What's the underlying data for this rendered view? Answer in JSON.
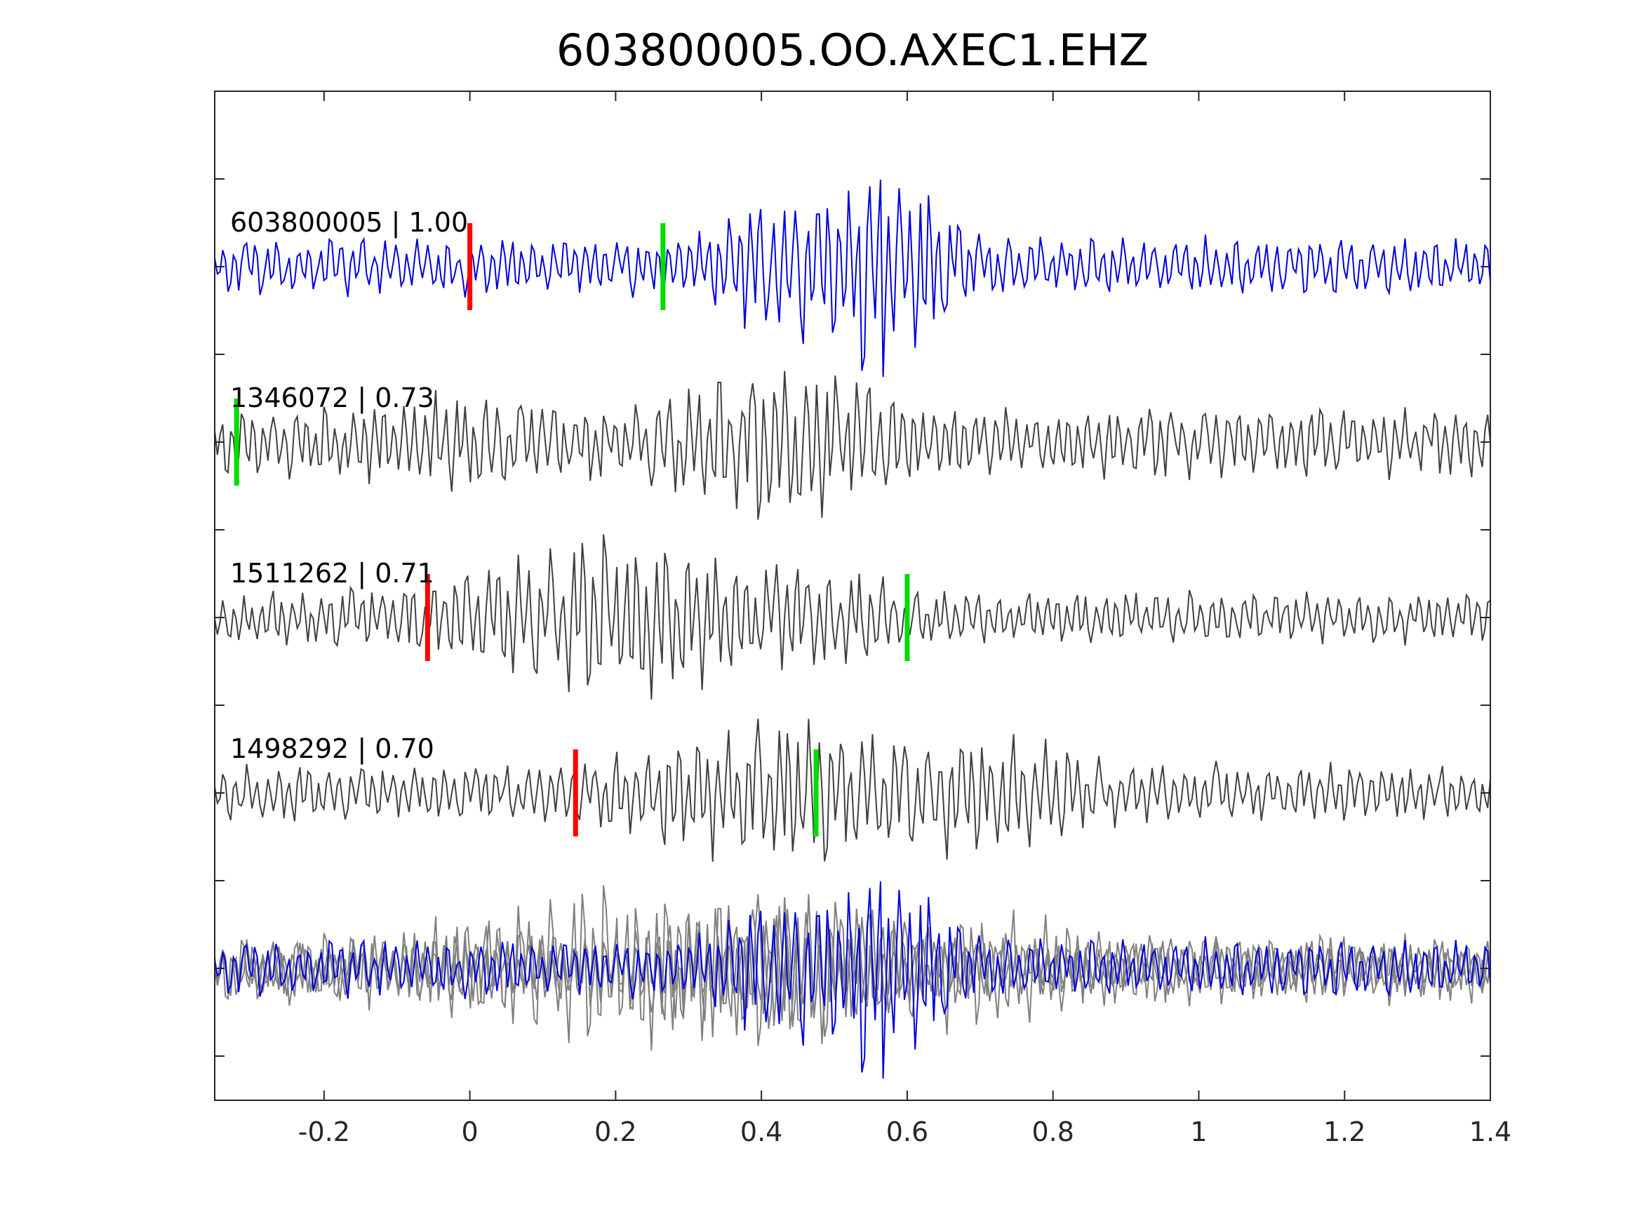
{
  "chart_data": {
    "type": "line",
    "title": "603800005.OO.AXEC1.EHZ",
    "xlabel": "",
    "ylabel": "",
    "xlim": [
      -0.35,
      1.4
    ],
    "x_ticks": [
      -0.2,
      0,
      0.2,
      0.4,
      0.6,
      0.8,
      1,
      1.2,
      1.4
    ],
    "x_tick_labels": [
      "-0.2",
      "0",
      "0.2",
      "0.4",
      "0.6",
      "0.8",
      "1",
      "1.2",
      "1.4"
    ],
    "grid": false,
    "legend": "none",
    "colors": {
      "reference": "#0000dd",
      "match": "#404040",
      "stack_match": "#808080",
      "p_pick": "#ff0000",
      "s_pick": "#00dd00",
      "axes": "#262626"
    },
    "traces": [
      {
        "label": "603800005 | 1.00",
        "event_id": "603800005",
        "correlation": 1.0,
        "role": "reference",
        "p_pick_time": 0.0,
        "s_pick_time": 0.265,
        "bursts": [
          [
            0.565,
            0.09,
            1.8
          ],
          [
            0.405,
            0.08,
            0.8
          ]
        ],
        "base_amplitude": 0.62,
        "seed": 11
      },
      {
        "label": "1346072 | 0.73",
        "event_id": "1346072",
        "correlation": 0.73,
        "role": "match",
        "p_pick_time": null,
        "s_pick_time": -0.32,
        "bursts": [
          [
            0.42,
            0.14,
            1.1
          ],
          [
            0.0,
            0.1,
            0.35
          ]
        ],
        "base_amplitude": 0.75,
        "seed": 23
      },
      {
        "label": "1511262 | 0.71",
        "event_id": "1511262",
        "correlation": 0.71,
        "role": "match",
        "p_pick_time": -0.058,
        "s_pick_time": 0.6,
        "bursts": [
          [
            0.2,
            0.22,
            1.25
          ],
          [
            0.5,
            0.08,
            0.4
          ]
        ],
        "base_amplitude": 0.55,
        "seed": 37
      },
      {
        "label": "1498292 | 0.70",
        "event_id": "1498292",
        "correlation": 0.7,
        "role": "match",
        "p_pick_time": 0.145,
        "s_pick_time": 0.475,
        "bursts": [
          [
            0.42,
            0.2,
            1.05
          ],
          [
            0.72,
            0.12,
            0.6
          ]
        ],
        "base_amplitude": 0.6,
        "seed": 53
      }
    ]
  }
}
